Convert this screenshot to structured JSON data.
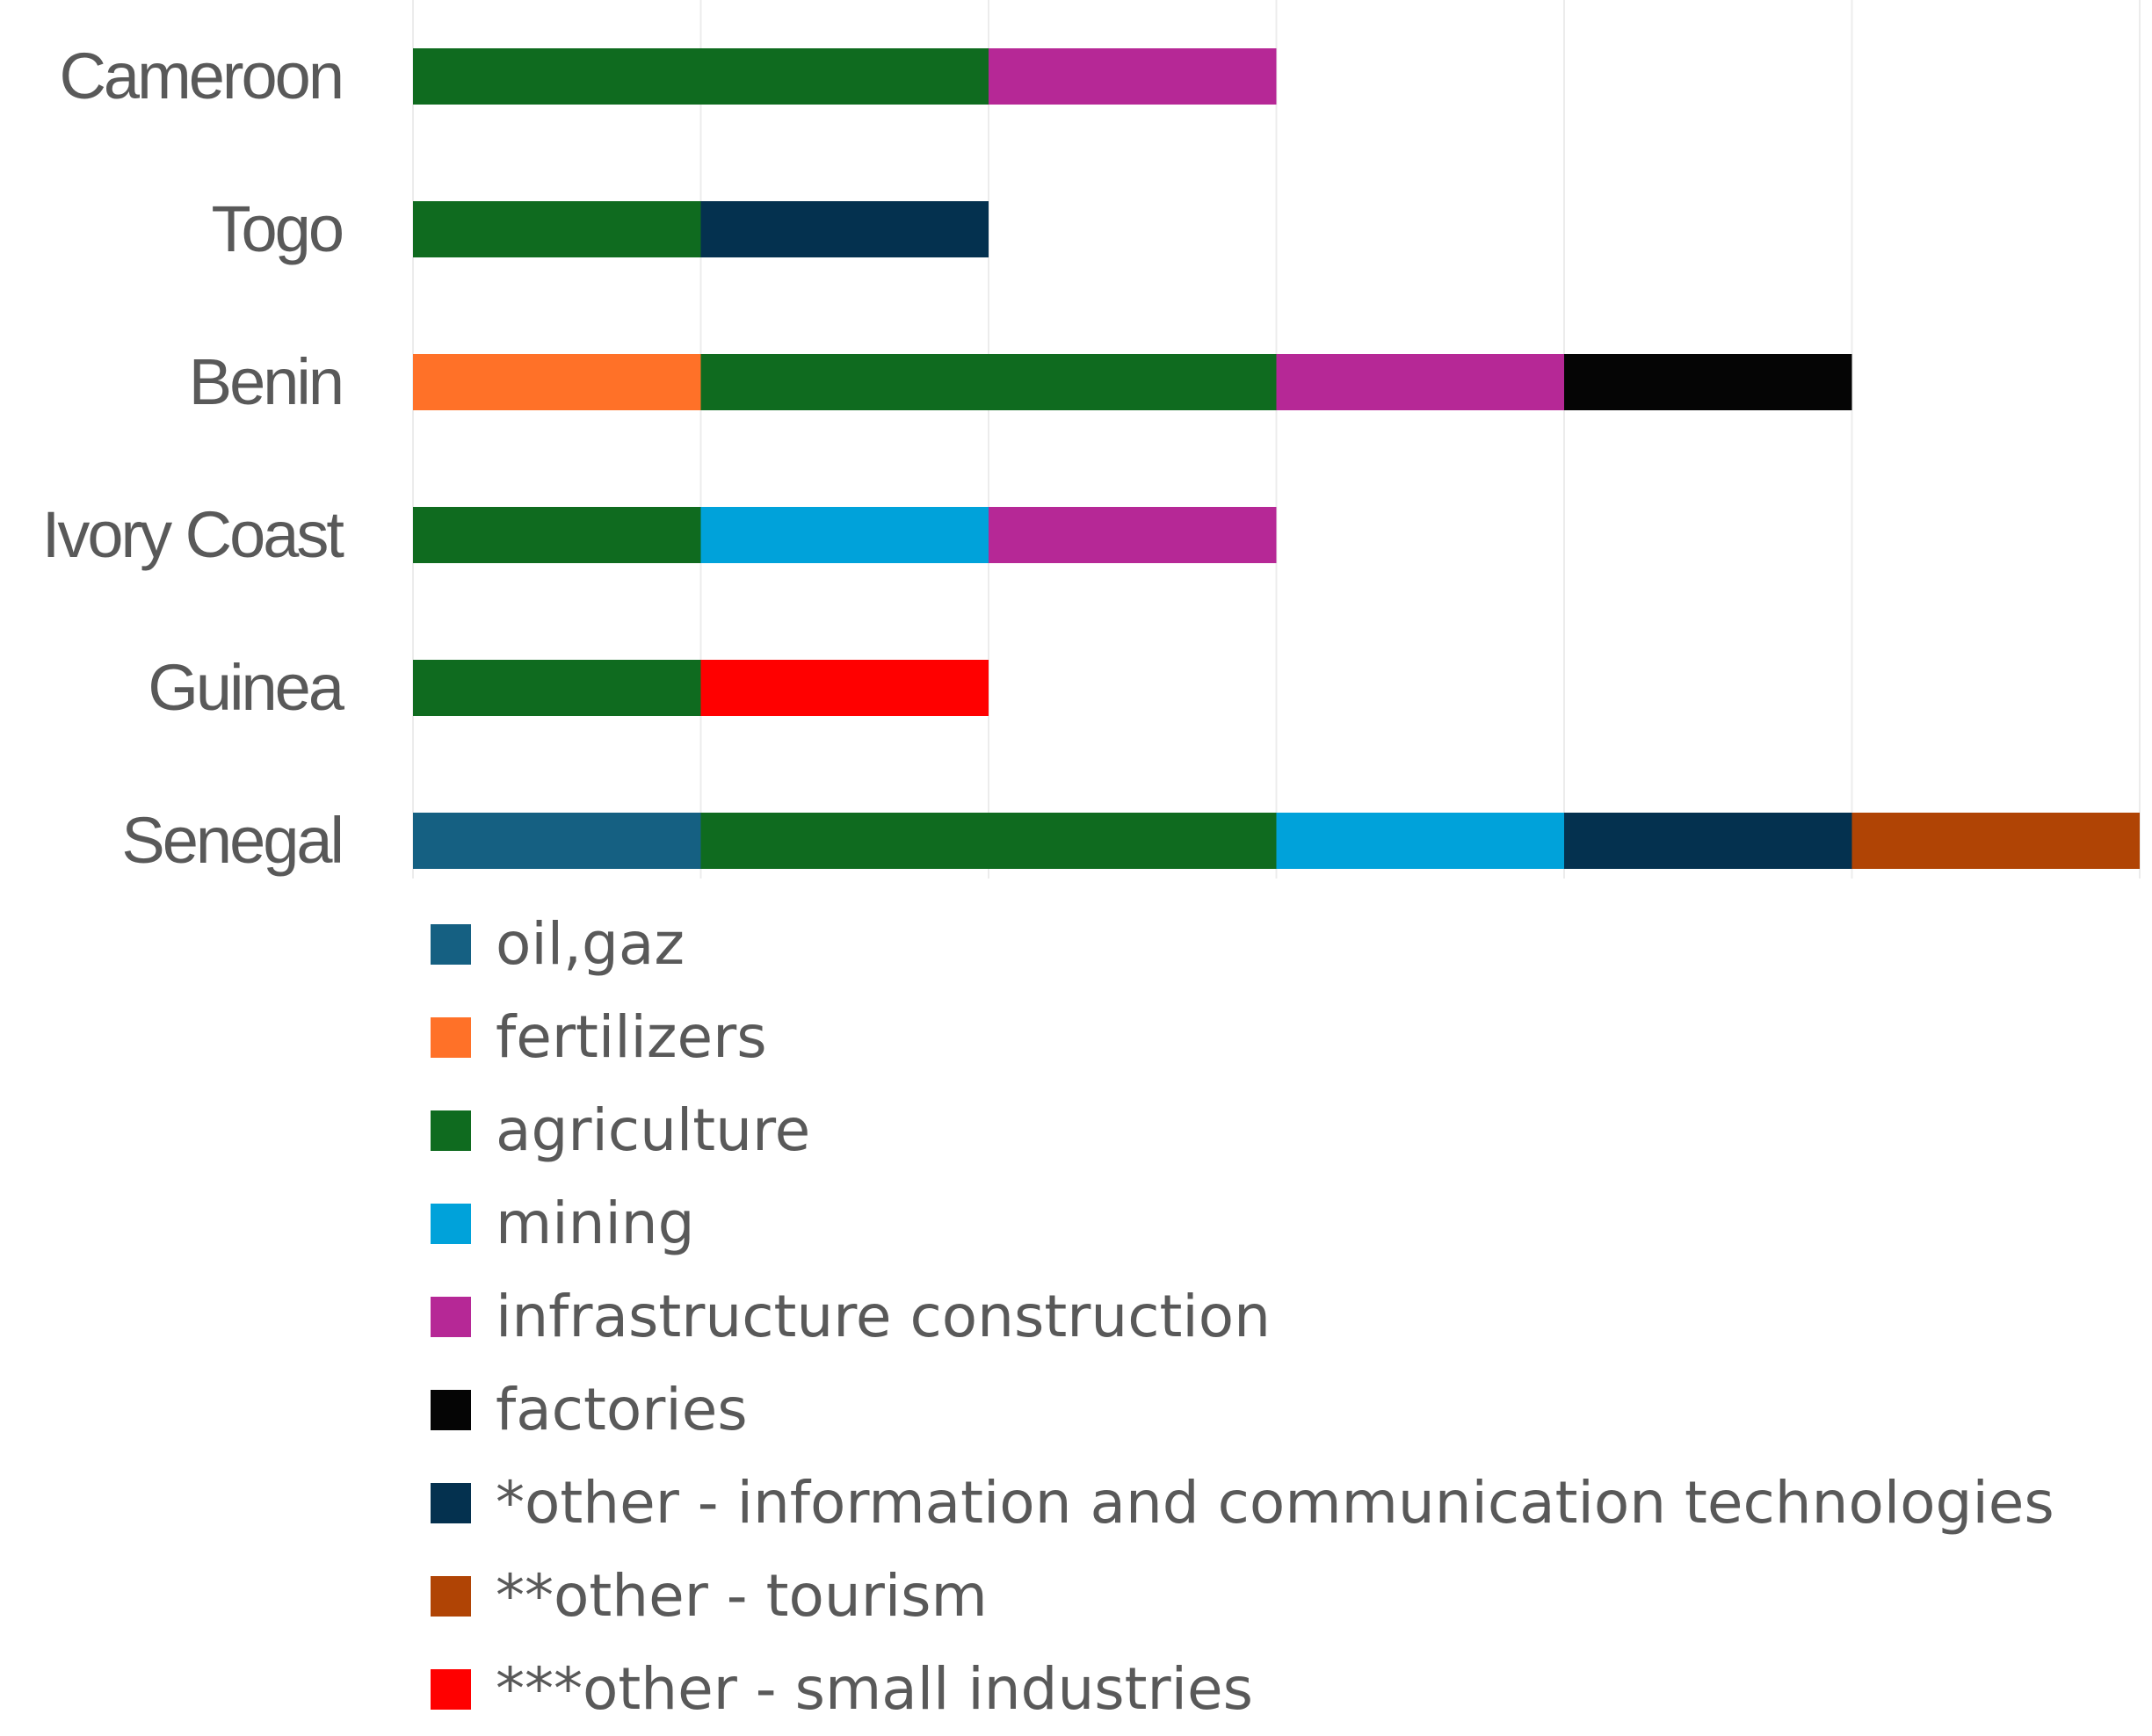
{
  "chart_data": {
    "type": "bar",
    "orientation": "horizontal",
    "stacked": true,
    "categories": [
      "Cameroon",
      "Togo",
      "Benin",
      "Ivory Coast",
      "Guinea",
      "Senegal"
    ],
    "series": [
      {
        "name": "oil,gaz",
        "color": "#156082",
        "values": [
          0,
          0,
          0,
          0,
          0,
          1
        ]
      },
      {
        "name": "fertilizers",
        "color": "#FF7128",
        "values": [
          0,
          0,
          1,
          0,
          0,
          0
        ]
      },
      {
        "name": "agriculture",
        "color": "#0F6B1F",
        "values": [
          2,
          1,
          2,
          1,
          1,
          2
        ]
      },
      {
        "name": "mining",
        "color": "#00A2DA",
        "values": [
          0,
          0,
          0,
          1,
          0,
          1
        ]
      },
      {
        "name": "infrastructure construction",
        "color": "#B62896",
        "values": [
          1,
          0,
          1,
          1,
          0,
          0
        ]
      },
      {
        "name": "factories",
        "color": "#050505",
        "values": [
          0,
          0,
          1,
          0,
          0,
          0
        ]
      },
      {
        "name": "*other - information and communication technologies",
        "color": "#04314F",
        "values": [
          0,
          1,
          0,
          0,
          0,
          1
        ]
      },
      {
        "name": "**other - tourism",
        "color": "#B04405",
        "values": [
          0,
          0,
          0,
          0,
          0,
          1
        ]
      },
      {
        "name": "***other - small industries",
        "color": "#FF0000",
        "values": [
          0,
          0,
          0,
          0,
          1,
          0
        ]
      }
    ],
    "xlim": [
      0,
      6
    ],
    "grid": true,
    "legend_position": "bottom"
  }
}
